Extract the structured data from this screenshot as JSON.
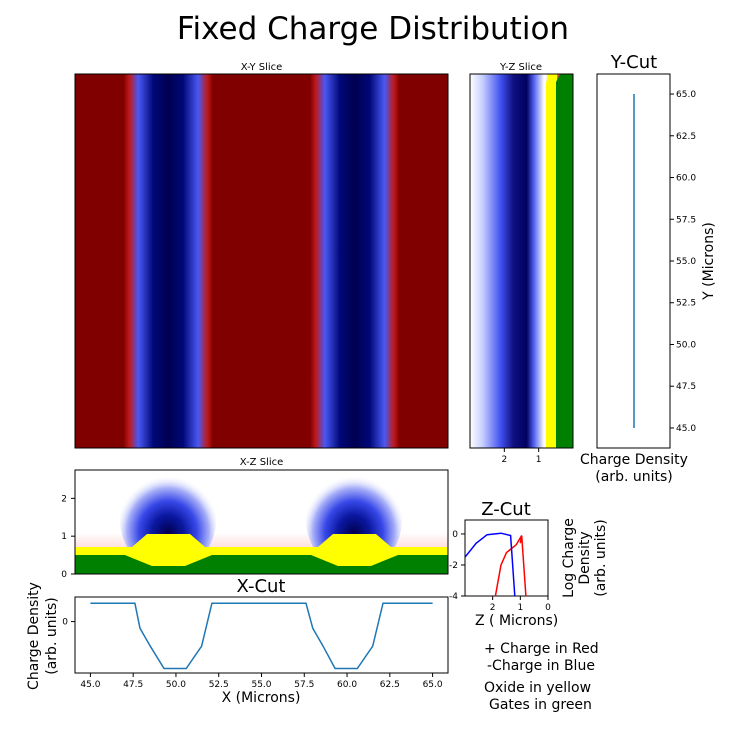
{
  "figure": {
    "title": "Fixed Charge Distribution",
    "colors": {
      "positive_charge": "#800000",
      "negative_charge": "#000050",
      "neutral": "#ffffff",
      "oxide": "#ffff00",
      "gates": "#008000",
      "line": "#1f77b4",
      "zcut_red": "#ff0000",
      "zcut_blue": "#0000ff"
    },
    "legend": {
      "line1": "+ Charge in Red",
      "line2": "-Charge in Blue",
      "line3": "Oxide in yellow",
      "line4": "Gates in green"
    }
  },
  "chart_data": [
    {
      "id": "xy-slice",
      "type": "heatmap",
      "title": "X-Y Slice",
      "xlabel": "",
      "ylabel": "",
      "x_range": [
        45.0,
        65.0
      ],
      "column_profile_x": [
        45,
        47.6,
        47.9,
        48.4,
        49.2,
        50.0,
        50.8,
        51.6,
        52.1,
        52.4,
        55.0,
        57.6,
        57.9,
        58.4,
        59.2,
        60.0,
        60.8,
        61.6,
        62.1,
        62.4,
        65.0
      ],
      "column_profile_v": [
        1,
        1,
        0.6,
        -0.35,
        -0.85,
        -1,
        -0.85,
        -0.35,
        0.6,
        1,
        1,
        1,
        0.6,
        -0.35,
        -0.85,
        -1,
        -0.85,
        -0.35,
        0.6,
        1,
        1
      ]
    },
    {
      "id": "yz-slice",
      "type": "heatmap",
      "title": "Y-Z Slice",
      "x_ticks": [
        "2",
        "1"
      ],
      "xlim": [
        3.0,
        0.0
      ]
    },
    {
      "id": "y-cut",
      "type": "line",
      "title": "Y-Cut",
      "xlabel": "Charge Density\n(arb. units)",
      "ylabel": "Y (Microns)",
      "ylim": [
        43.8,
        66.2
      ],
      "y_ticks": [
        "45.0",
        "47.5",
        "50.0",
        "52.5",
        "55.0",
        "57.5",
        "60.0",
        "62.5",
        "65.0"
      ],
      "series": [
        {
          "x": [
            0,
            0
          ],
          "y": [
            45.0,
            65.0
          ]
        }
      ]
    },
    {
      "id": "xz-slice",
      "type": "heatmap",
      "title": "X-Z Slice",
      "y_ticks": [
        "0",
        "1",
        "2"
      ],
      "ylim": [
        0,
        2.75
      ]
    },
    {
      "id": "x-cut",
      "type": "line",
      "title": "X-Cut",
      "xlabel": "X (Microns)",
      "ylabel": "Charge Density\n(arb. units)",
      "x_ticks": [
        "45.0",
        "47.5",
        "50.0",
        "52.5",
        "55.0",
        "57.5",
        "60.0",
        "62.5",
        "65.0"
      ],
      "y_ticks": [
        "0"
      ],
      "xlim": [
        44.1,
        65.9
      ],
      "ylim": [
        -1.15,
        0.55
      ],
      "series": [
        {
          "x": [
            45.0,
            47.6,
            47.9,
            48.5,
            49.3,
            50.6,
            51.5,
            52.1,
            57.6,
            58.0,
            58.6,
            59.3,
            60.6,
            61.5,
            62.1,
            65.0
          ],
          "y": [
            0.41,
            0.41,
            -0.15,
            -0.55,
            -1.05,
            -1.05,
            -0.55,
            0.41,
            0.41,
            -0.15,
            -0.55,
            -1.05,
            -1.05,
            -0.55,
            0.41,
            0.41
          ]
        }
      ]
    },
    {
      "id": "z-cut",
      "type": "line",
      "title": "Z-Cut",
      "xlabel": "Z ( Microns)",
      "ylabel": "Log Charge\nDensity\n(arb. units)",
      "x_ticks": [
        "2",
        "1",
        "0"
      ],
      "y_ticks": [
        "0",
        "-2",
        "-4"
      ],
      "xlim": [
        3.0,
        0.0
      ],
      "ylim": [
        -4.0,
        0.9
      ],
      "series": [
        {
          "color": "red",
          "x": [
            1.9,
            1.7,
            1.5,
            1.15,
            0.95
          ],
          "y": [
            -4.0,
            -2.0,
            -1.2,
            -0.7,
            -0.1
          ]
        },
        {
          "color": "red",
          "x": [
            1.0,
            0.95,
            0.8
          ],
          "y": [
            -0.6,
            -0.1,
            -4.0
          ]
        },
        {
          "color": "blue",
          "x": [
            3.0,
            2.6,
            2.2,
            1.7,
            1.35,
            1.2
          ],
          "y": [
            -1.5,
            -0.6,
            -0.05,
            0.05,
            -0.1,
            -4.0
          ]
        }
      ]
    }
  ]
}
